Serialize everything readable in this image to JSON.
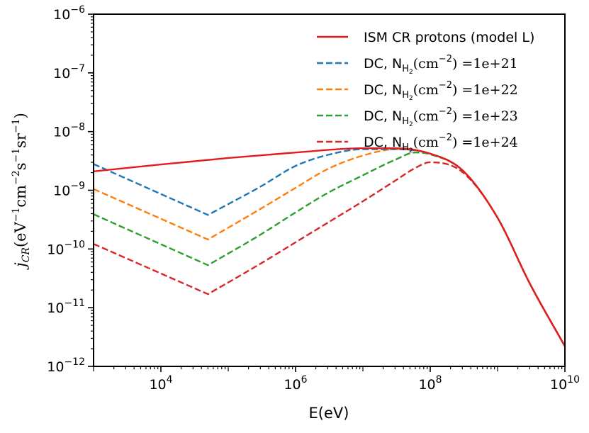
{
  "chart_data": {
    "type": "line",
    "xscale": "log",
    "yscale": "log",
    "xlabel": "E(eV)",
    "ylabel": "j_CR(eV^-1 cm^-2 s^-1 sr^-1)",
    "xlim": [
      1000,
      10000000000
    ],
    "ylim": [
      1e-12,
      1e-06
    ],
    "x_ticks": [
      10000,
      1000000,
      100000000,
      10000000000
    ],
    "x_tick_labels": [
      "10^4",
      "10^6",
      "10^8",
      "10^10"
    ],
    "y_ticks": [
      1e-12,
      1e-11,
      1e-10,
      1e-09,
      1e-08,
      1e-07,
      1e-06
    ],
    "y_tick_labels": [
      "10^-12",
      "10^-11",
      "10^-10",
      "10^-9",
      "10^-8",
      "10^-7",
      "10^-6"
    ],
    "grid": false,
    "legend_position": "top-right",
    "series": [
      {
        "name": "ISM CR protons (model L)",
        "color": "#e41a1c",
        "style": "solid",
        "x": [
          1000,
          10000,
          100000,
          1000000,
          10000000,
          30000000,
          100000000,
          300000000,
          1000000000,
          3000000000,
          10000000000
        ],
        "y": [
          2.1e-09,
          2.75e-09,
          3.55e-09,
          4.4e-09,
          5.2e-09,
          5.2e-09,
          4.2e-09,
          2.2e-09,
          3.4e-10,
          2.6e-11,
          2.2e-12
        ]
      },
      {
        "name": "DC, N_H2(cm^-2) =1e+21",
        "color": "#1f77b4",
        "style": "dashed",
        "x": [
          1000,
          50000,
          300000,
          1000000,
          3000000,
          10000000,
          30000000,
          100000000,
          300000000,
          1000000000,
          3000000000,
          10000000000
        ],
        "y": [
          2.8e-09,
          3.8e-10,
          1.15e-09,
          2.6e-09,
          4e-09,
          5e-09,
          5e-09,
          4.2e-09,
          2.2e-09,
          3.4e-10,
          2.6e-11,
          2.2e-12
        ]
      },
      {
        "name": "DC, N_H2(cm^-2) =1e+22",
        "color": "#ff7f0e",
        "style": "dashed",
        "x": [
          1000,
          50000,
          300000,
          1000000,
          3000000,
          10000000,
          30000000,
          100000000,
          300000000,
          1000000000,
          3000000000,
          10000000000
        ],
        "y": [
          1.05e-09,
          1.45e-10,
          4.8e-10,
          1.1e-09,
          2.3e-09,
          3.9e-09,
          5e-09,
          4.2e-09,
          2.2e-09,
          3.4e-10,
          2.6e-11,
          2.2e-12
        ]
      },
      {
        "name": "DC, N_H2(cm^-2) =1e+23",
        "color": "#2ca02c",
        "style": "dashed",
        "x": [
          1000,
          50000,
          300000,
          1000000,
          3000000,
          10000000,
          30000000,
          60000000,
          100000000,
          300000000,
          1000000000,
          3000000000,
          10000000000
        ],
        "y": [
          3.9e-10,
          5.3e-11,
          1.75e-10,
          4.2e-10,
          9e-10,
          1.8e-09,
          3.3e-09,
          4.4e-09,
          4.1e-09,
          2.2e-09,
          3.4e-10,
          2.6e-11,
          2.2e-12
        ]
      },
      {
        "name": "DC, N_H2(cm^-2) =1e+24",
        "color": "#d62728",
        "style": "dashed",
        "x": [
          1000,
          50000,
          300000,
          1000000,
          3000000,
          10000000,
          30000000,
          60000000,
          100000000,
          300000000,
          1000000000,
          3000000000,
          10000000000
        ],
        "y": [
          1.22e-10,
          1.7e-11,
          5.6e-11,
          1.3e-10,
          2.8e-10,
          6.5e-10,
          1.45e-09,
          2.4e-09,
          3e-09,
          2.05e-09,
          3.4e-10,
          2.6e-11,
          2.2e-12
        ]
      }
    ]
  }
}
